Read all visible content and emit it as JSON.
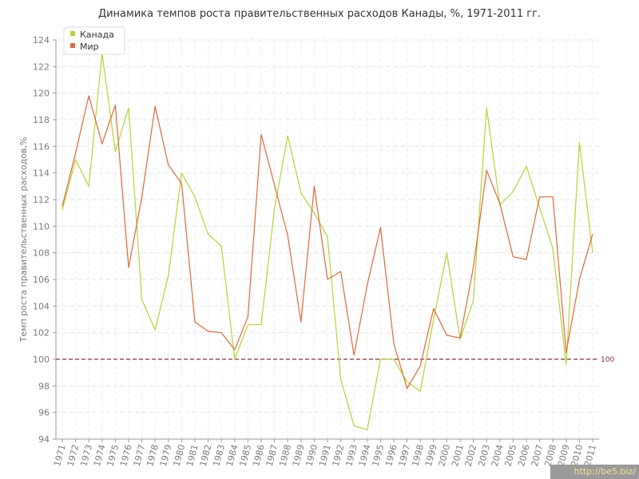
{
  "chart_data": {
    "type": "line",
    "title": "Динамика темпов роста правительственных расходов Канады, %, 1971-2011 гг.",
    "ylabel": "Темп роста правительственных расходов,%",
    "xlabel": "",
    "ylim": [
      94,
      124
    ],
    "yticks": [
      94,
      96,
      98,
      100,
      102,
      104,
      106,
      108,
      110,
      112,
      114,
      116,
      118,
      120,
      122,
      124
    ],
    "x": [
      "1971",
      "1972",
      "1973",
      "1974",
      "1975",
      "1976",
      "1977",
      "1978",
      "1979",
      "1980",
      "1981",
      "1982",
      "1983",
      "1984",
      "1985",
      "1986",
      "1987",
      "1988",
      "1989",
      "1990",
      "1991",
      "1992",
      "1993",
      "1994",
      "1995",
      "1996",
      "1997",
      "1998",
      "1999",
      "2000",
      "2001",
      "2002",
      "2003",
      "2004",
      "2005",
      "2006",
      "2007",
      "2008",
      "2009",
      "2010",
      "2011"
    ],
    "series": [
      {
        "name": "Канада",
        "color": "#b5d334",
        "values": [
          111.2,
          115.0,
          113.0,
          123.0,
          115.6,
          118.9,
          104.5,
          102.2,
          106.3,
          114.0,
          112.2,
          109.4,
          108.5,
          100.0,
          102.6,
          102.6,
          111.3,
          116.8,
          112.5,
          111.0,
          109.2,
          98.5,
          95.0,
          94.7,
          100.0,
          100.0,
          98.3,
          97.6,
          103.0,
          108.0,
          101.5,
          104.4,
          118.9,
          111.6,
          112.6,
          114.5,
          111.4,
          108.3,
          99.6,
          116.3,
          108.0
        ]
      },
      {
        "name": "Мир",
        "color": "#e0683a",
        "values": [
          111.5,
          115.5,
          119.8,
          116.2,
          119.1,
          106.9,
          112.2,
          119.0,
          114.6,
          113.2,
          102.8,
          102.1,
          102.0,
          100.7,
          103.2,
          116.9,
          113.1,
          109.3,
          102.8,
          113.0,
          106.0,
          106.6,
          100.3,
          105.6,
          109.9,
          101.2,
          97.8,
          99.5,
          103.8,
          101.8,
          101.6,
          106.9,
          114.2,
          111.7,
          107.7,
          107.5,
          112.2,
          112.2,
          100.5,
          106.0,
          109.4
        ]
      }
    ],
    "reference_line": {
      "value": 100,
      "label": "100",
      "color": "#8b2d3a"
    },
    "grid": true,
    "legend_position": "top-left"
  },
  "watermark": "http://be5.biz/"
}
